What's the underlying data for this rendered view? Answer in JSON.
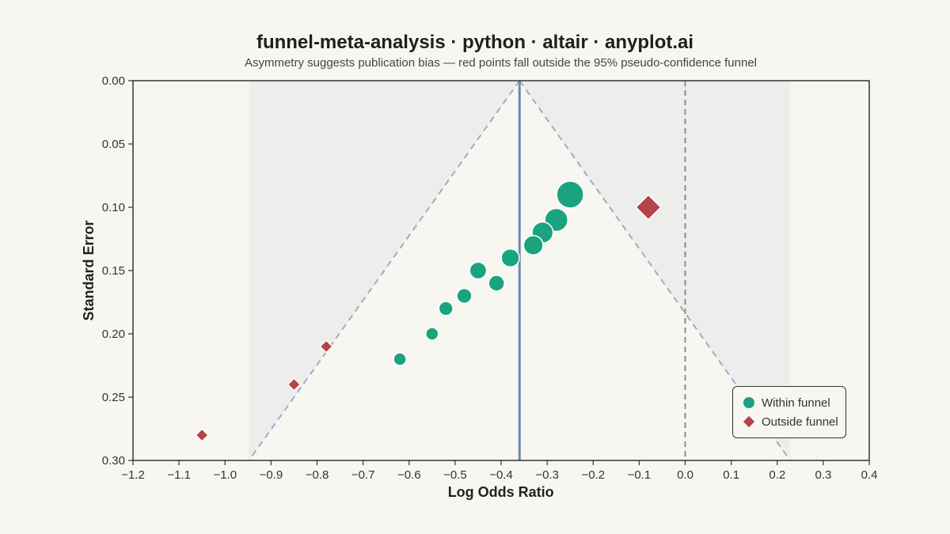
{
  "title": "funnel-meta-analysis · python · altair · anyplot.ai",
  "subtitle": "Asymmetry suggests publication bias — red points fall outside the 95% pseudo-confidence funnel",
  "colors": {
    "background": "#F8F6F0",
    "funnel_shading": "#EDEDEB",
    "within": "#1AA37F",
    "outside": "#B34447",
    "summary_line": "#6F88B2",
    "funnel_edge": "#9BADC9",
    "null_line": "#8C8C8C",
    "axis": "#333333"
  },
  "chart_data": {
    "type": "scatter",
    "title": "funnel-meta-analysis · python · altair · anyplot.ai",
    "subtitle": "Asymmetry suggests publication bias — red points fall outside the 95% pseudo-confidence funnel",
    "xlabel": "Log Odds Ratio",
    "ylabel": "Standard Error",
    "xlim": [
      -1.2,
      0.4
    ],
    "ylim": [
      0.0,
      0.3
    ],
    "y_reversed": true,
    "x_ticks": [
      "−1.2",
      "−1.1",
      "−1.0",
      "−0.9",
      "−0.8",
      "−0.7",
      "−0.6",
      "−0.5",
      "−0.4",
      "−0.3",
      "−0.2",
      "−0.1",
      "0.0",
      "0.1",
      "0.2",
      "0.3",
      "0.4"
    ],
    "x_tick_values": [
      -1.2,
      -1.1,
      -1.0,
      -0.9,
      -0.8,
      -0.7,
      -0.6,
      -0.5,
      -0.4,
      -0.3,
      -0.2,
      -0.1,
      0.0,
      0.1,
      0.2,
      0.3,
      0.4
    ],
    "y_ticks": [
      "0.00",
      "0.05",
      "0.10",
      "0.15",
      "0.20",
      "0.25",
      "0.30"
    ],
    "y_tick_values": [
      0.0,
      0.05,
      0.1,
      0.15,
      0.2,
      0.25,
      0.3
    ],
    "summary_effect": -0.36,
    "null_effect": 0.0,
    "funnel_z": 1.96,
    "funnel_se_max": 0.3,
    "grid": false,
    "legend_position": "bottom-right",
    "series": [
      {
        "name": "Within funnel",
        "marker": "circle",
        "points": [
          {
            "x": -0.25,
            "y": 0.09
          },
          {
            "x": -0.28,
            "y": 0.11
          },
          {
            "x": -0.31,
            "y": 0.12
          },
          {
            "x": -0.33,
            "y": 0.13
          },
          {
            "x": -0.38,
            "y": 0.14
          },
          {
            "x": -0.45,
            "y": 0.15
          },
          {
            "x": -0.41,
            "y": 0.16
          },
          {
            "x": -0.48,
            "y": 0.17
          },
          {
            "x": -0.52,
            "y": 0.18
          },
          {
            "x": -0.55,
            "y": 0.2
          },
          {
            "x": -0.62,
            "y": 0.22
          }
        ]
      },
      {
        "name": "Outside funnel",
        "marker": "diamond",
        "points": [
          {
            "x": -0.08,
            "y": 0.1
          },
          {
            "x": -0.78,
            "y": 0.21
          },
          {
            "x": -0.85,
            "y": 0.24
          },
          {
            "x": -1.05,
            "y": 0.28
          }
        ]
      }
    ]
  }
}
